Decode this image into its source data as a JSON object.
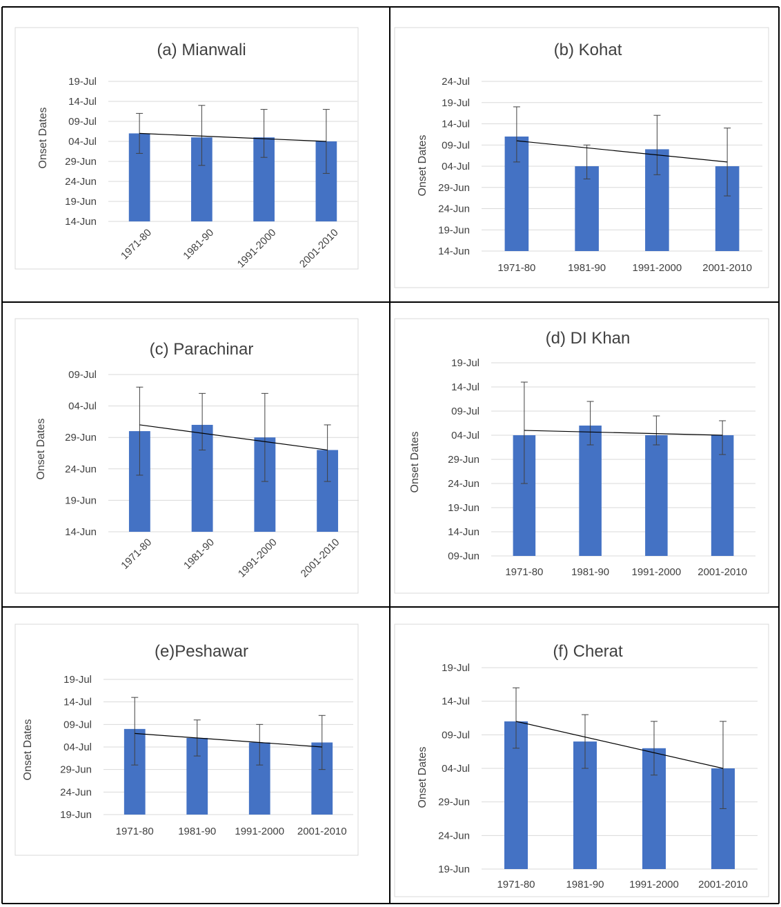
{
  "figure": {
    "axis_label": "Onset Dates"
  },
  "chart_data": [
    {
      "type": "bar",
      "title": "(a) Mianwali",
      "ylabel": "Onset Dates",
      "categories": [
        "1971-80",
        "1981-90",
        "1991-2000",
        "2001-2010"
      ],
      "x_label_rotation": "diagonal",
      "y_ticks": [
        "14-Jun",
        "19-Jun",
        "24-Jun",
        "29-Jun",
        "04-Jul",
        "09-Jul",
        "14-Jul",
        "19-Jul"
      ],
      "ylim": [
        "14-Jun",
        "19-Jul"
      ],
      "values": [
        "06-Jul",
        "05-Jul",
        "05-Jul",
        "04-Jul"
      ],
      "error_upper": [
        "11-Jul",
        "13-Jul",
        "12-Jul",
        "12-Jul"
      ],
      "error_lower": [
        "31-Jun",
        "28-Jun",
        "30-Jun",
        "26-Jun"
      ],
      "trendline": {
        "start": "06-Jul",
        "end": "04-Jul"
      },
      "grid": true,
      "legend": "none",
      "bar_color": "#4472C4"
    },
    {
      "type": "bar",
      "title": "(b) Kohat",
      "ylabel": "Onset Dates",
      "categories": [
        "1971-80",
        "1981-90",
        "1991-2000",
        "2001-2010"
      ],
      "x_label_rotation": "horizontal",
      "y_ticks": [
        "14-Jun",
        "19-Jun",
        "24-Jun",
        "29-Jun",
        "04-Jul",
        "09-Jul",
        "14-Jul",
        "19-Jul",
        "24-Jul"
      ],
      "ylim": [
        "14-Jun",
        "24-Jul"
      ],
      "values": [
        "11-Jul",
        "04-Jul",
        "08-Jul",
        "04-Jul"
      ],
      "error_upper": [
        "18-Jul",
        "09-Jul",
        "16-Jul",
        "13-Jul"
      ],
      "error_lower": [
        "05-Jul",
        "01-Jul",
        "02-Jul",
        "27-Jun"
      ],
      "trendline": {
        "start": "10-Jul",
        "end": "05-Jul"
      },
      "grid": true,
      "legend": "none",
      "bar_color": "#4472C4"
    },
    {
      "type": "bar",
      "title": "(c) Parachinar",
      "ylabel": "Onset Dates",
      "categories": [
        "1971-80",
        "1981-90",
        "1991-2000",
        "2001-2010"
      ],
      "x_label_rotation": "diagonal",
      "y_ticks": [
        "14-Jun",
        "19-Jun",
        "24-Jun",
        "29-Jun",
        "04-Jul",
        "09-Jul"
      ],
      "ylim": [
        "14-Jun",
        "09-Jul"
      ],
      "values": [
        "30-Jun",
        "01-Jul",
        "29-Jun",
        "27-Jun"
      ],
      "error_upper": [
        "07-Jul",
        "06-Jul",
        "06-Jul",
        "01-Jul"
      ],
      "error_lower": [
        "23-Jun",
        "27-Jun",
        "22-Jun",
        "22-Jun"
      ],
      "trendline": {
        "start": "01-Jul",
        "end": "27-Jun"
      },
      "grid": true,
      "legend": "none",
      "bar_color": "#4472C4"
    },
    {
      "type": "bar",
      "title": "(d) DI Khan",
      "ylabel": "Onset Dates",
      "categories": [
        "1971-80",
        "1981-90",
        "1991-2000",
        "2001-2010"
      ],
      "x_label_rotation": "horizontal",
      "y_ticks": [
        "09-Jun",
        "14-Jun",
        "19-Jun",
        "24-Jun",
        "29-Jun",
        "04-Jul",
        "09-Jul",
        "14-Jul",
        "19-Jul"
      ],
      "ylim": [
        "09-Jun",
        "19-Jul"
      ],
      "values": [
        "04-Jul",
        "06-Jul",
        "04-Jul",
        "04-Jul"
      ],
      "error_upper": [
        "15-Jul",
        "11-Jul",
        "08-Jul",
        "07-Jul"
      ],
      "error_lower": [
        "24-Jun",
        "02-Jul",
        "02-Jul",
        "30-Jun"
      ],
      "trendline": {
        "start": "05-Jul",
        "end": "04-Jul"
      },
      "grid": true,
      "legend": "none",
      "bar_color": "#4472C4"
    },
    {
      "type": "bar",
      "title": "(e)Peshawar",
      "ylabel": "Onset Dates",
      "categories": [
        "1971-80",
        "1981-90",
        "1991-2000",
        "2001-2010"
      ],
      "x_label_rotation": "horizontal",
      "y_ticks": [
        "19-Jun",
        "24-Jun",
        "29-Jun",
        "04-Jul",
        "09-Jul",
        "14-Jul",
        "19-Jul"
      ],
      "ylim": [
        "19-Jun",
        "19-Jul"
      ],
      "values": [
        "08-Jul",
        "06-Jul",
        "05-Jul",
        "05-Jul"
      ],
      "error_upper": [
        "15-Jul",
        "10-Jul",
        "09-Jul",
        "11-Jul"
      ],
      "error_lower": [
        "30-Jun",
        "02-Jul",
        "30-Jun",
        "29-Jun"
      ],
      "trendline": {
        "start": "07-Jul",
        "end": "04-Jul"
      },
      "grid": true,
      "legend": "none",
      "bar_color": "#4472C4"
    },
    {
      "type": "bar",
      "title": "(f) Cherat",
      "ylabel": "Onset Dates",
      "categories": [
        "1971-80",
        "1981-90",
        "1991-2000",
        "2001-2010"
      ],
      "x_label_rotation": "horizontal",
      "y_ticks": [
        "19-Jun",
        "24-Jun",
        "29-Jun",
        "04-Jul",
        "09-Jul",
        "14-Jul",
        "19-Jul"
      ],
      "ylim": [
        "19-Jun",
        "19-Jul"
      ],
      "values": [
        "11-Jul",
        "08-Jul",
        "07-Jul",
        "04-Jul"
      ],
      "error_upper": [
        "16-Jul",
        "12-Jul",
        "11-Jul",
        "11-Jul"
      ],
      "error_lower": [
        "07-Jul",
        "04-Jul",
        "03-Jul",
        "28-Jun"
      ],
      "trendline": {
        "start": "11-Jul",
        "end": "04-Jul"
      },
      "grid": true,
      "legend": "none",
      "bar_color": "#4472C4"
    }
  ]
}
